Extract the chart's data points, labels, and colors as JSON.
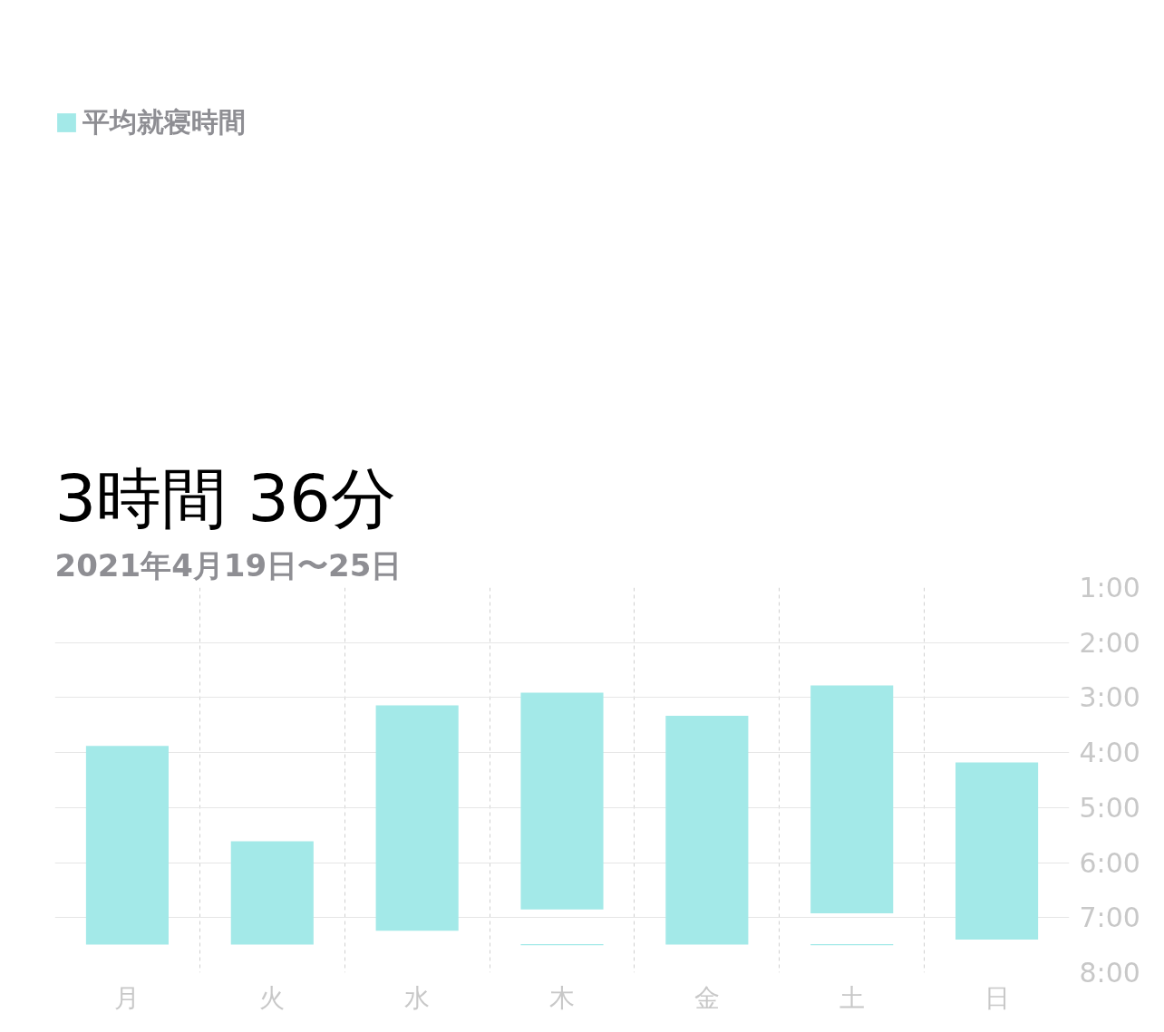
{
  "chart_data": {
    "type": "bar",
    "subtitle": "3時間 36分",
    "annotations": [
      "2021年4月19日〜25日"
    ],
    "categories": [
      "月",
      "火",
      "水",
      "木",
      "金",
      "土",
      "日"
    ],
    "series": [
      {
        "name": "平均就寝時間",
        "color": "#a3e9e8",
        "base": [
          3.88,
          5.61,
          3.14,
          2.91,
          3.33,
          2.78,
          4.18
        ],
        "values": [
          3.61,
          1.88,
          4.1,
          3.94,
          4.16,
          4.14,
          3.22
        ]
      },
      {
        "color": "#a3e9e8",
        "base": [
          null,
          null,
          null,
          7.48,
          null,
          7.48,
          null
        ],
        "values": [
          null,
          null,
          null,
          0.02,
          null,
          0.02,
          null
        ]
      }
    ],
    "ylim": [
      8,
      1
    ],
    "yticks": [
      {
        "value": 1,
        "label": "1:00"
      },
      {
        "value": 2,
        "label": "2:00"
      },
      {
        "value": 3,
        "label": "3:00"
      },
      {
        "value": 4,
        "label": "4:00"
      },
      {
        "value": 5,
        "label": "5:00"
      },
      {
        "value": 6,
        "label": "6:00"
      },
      {
        "value": 7,
        "label": "7:00"
      },
      {
        "value": 8,
        "label": "8:00"
      }
    ],
    "grid": true,
    "legend": "top left"
  }
}
